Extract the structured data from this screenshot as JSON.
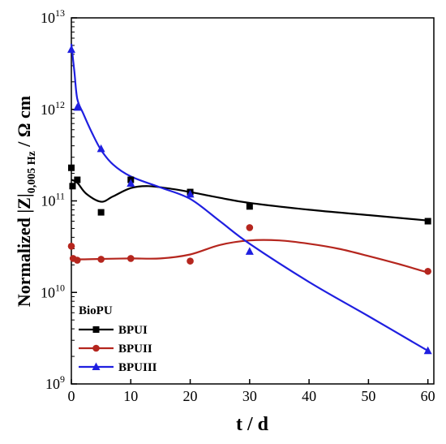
{
  "chart_data": {
    "type": "scatter",
    "title": "",
    "xlabel": "t / d",
    "ylabel": {
      "prefix": "Normalized |",
      "bold_part": "Z",
      "middle": "|",
      "subscript": "0,005 Hz",
      "suffix": " / Ω cm"
    },
    "xlim": [
      0,
      61
    ],
    "ylim": [
      1000000000,
      10000000000000
    ],
    "yscale": "log",
    "x_ticks": [
      0,
      10,
      20,
      30,
      40,
      50,
      60
    ],
    "y_ticks": [
      {
        "value": 1000000000,
        "base": "10",
        "exp": "9"
      },
      {
        "value": 10000000000,
        "base": "10",
        "exp": "10"
      },
      {
        "value": 100000000000,
        "base": "10",
        "exp": "11"
      },
      {
        "value": 1000000000000,
        "base": "10",
        "exp": "12"
      },
      {
        "value": 10000000000000,
        "base": "10",
        "exp": "13"
      }
    ],
    "legend": {
      "title": "BioPU",
      "placement": "bottom-left"
    },
    "series": [
      {
        "name": "BPUI",
        "color": "#000000",
        "marker": "square",
        "points": [
          {
            "x": 0,
            "y": 230000000000
          },
          {
            "x": 0.2,
            "y": 145000000000
          },
          {
            "x": 1,
            "y": 170000000000
          },
          {
            "x": 5,
            "y": 75000000000
          },
          {
            "x": 10,
            "y": 170000000000
          },
          {
            "x": 20,
            "y": 125000000000
          },
          {
            "x": 30,
            "y": 87000000000
          },
          {
            "x": 60,
            "y": 60000000000
          }
        ],
        "curve": [
          {
            "x": 0,
            "y": 170000000000
          },
          {
            "x": 1,
            "y": 158000000000
          },
          {
            "x": 2.5,
            "y": 120000000000
          },
          {
            "x": 5,
            "y": 98000000000
          },
          {
            "x": 7,
            "y": 112000000000
          },
          {
            "x": 10,
            "y": 138000000000
          },
          {
            "x": 13,
            "y": 145000000000
          },
          {
            "x": 17,
            "y": 135000000000
          },
          {
            "x": 20,
            "y": 125000000000
          },
          {
            "x": 25,
            "y": 108000000000
          },
          {
            "x": 30,
            "y": 95000000000
          },
          {
            "x": 40,
            "y": 80000000000
          },
          {
            "x": 50,
            "y": 70000000000
          },
          {
            "x": 60,
            "y": 61000000000
          }
        ]
      },
      {
        "name": "BPUII",
        "color": "#b5261e",
        "marker": "circle",
        "points": [
          {
            "x": 0,
            "y": 32000000000
          },
          {
            "x": 0.3,
            "y": 23500000000
          },
          {
            "x": 1,
            "y": 22500000000
          },
          {
            "x": 5,
            "y": 23000000000
          },
          {
            "x": 10,
            "y": 23500000000
          },
          {
            "x": 20,
            "y": 22000000000
          },
          {
            "x": 30,
            "y": 51000000000
          },
          {
            "x": 60,
            "y": 17000000000
          }
        ],
        "curve": [
          {
            "x": 0,
            "y": 24000000000
          },
          {
            "x": 1,
            "y": 23000000000
          },
          {
            "x": 5,
            "y": 23200000000
          },
          {
            "x": 10,
            "y": 23500000000
          },
          {
            "x": 15,
            "y": 23500000000
          },
          {
            "x": 20,
            "y": 26000000000
          },
          {
            "x": 25,
            "y": 33000000000
          },
          {
            "x": 30,
            "y": 37000000000
          },
          {
            "x": 35,
            "y": 37000000000
          },
          {
            "x": 40,
            "y": 34000000000
          },
          {
            "x": 45,
            "y": 30000000000
          },
          {
            "x": 50,
            "y": 25000000000
          },
          {
            "x": 55,
            "y": 20500000000
          },
          {
            "x": 60,
            "y": 16500000000
          }
        ]
      },
      {
        "name": "BPUIII",
        "color": "#1f1fe0",
        "marker": "triangle",
        "points": [
          {
            "x": 0,
            "y": 4500000000000
          },
          {
            "x": 1,
            "y": 1050000000000
          },
          {
            "x": 5,
            "y": 370000000000
          },
          {
            "x": 10,
            "y": 155000000000
          },
          {
            "x": 20,
            "y": 118000000000
          },
          {
            "x": 30,
            "y": 28000000000
          },
          {
            "x": 60,
            "y": 2300000000
          }
        ],
        "curve": [
          {
            "x": 0,
            "y": 5200000000000
          },
          {
            "x": 0.5,
            "y": 2600000000000
          },
          {
            "x": 1,
            "y": 1300000000000
          },
          {
            "x": 2,
            "y": 900000000000
          },
          {
            "x": 3.5,
            "y": 550000000000
          },
          {
            "x": 5,
            "y": 360000000000
          },
          {
            "x": 7,
            "y": 250000000000
          },
          {
            "x": 10,
            "y": 185000000000
          },
          {
            "x": 15,
            "y": 140000000000
          },
          {
            "x": 20,
            "y": 105000000000
          },
          {
            "x": 25,
            "y": 60000000000
          },
          {
            "x": 30,
            "y": 34000000000
          },
          {
            "x": 40,
            "y": 13000000000
          },
          {
            "x": 50,
            "y": 5500000000
          },
          {
            "x": 60,
            "y": 2300000000
          }
        ]
      }
    ]
  }
}
